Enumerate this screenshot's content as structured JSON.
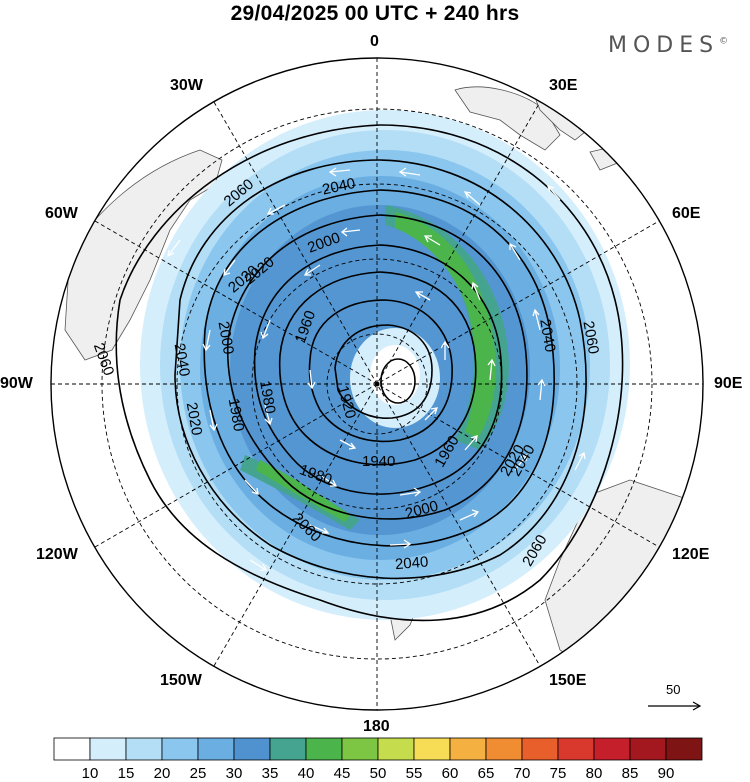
{
  "header": {
    "title": "29/04/2025  00 UTC  + 240 hrs",
    "brand": "MODES"
  },
  "map": {
    "projection": "south polar stereographic",
    "longitude_labels": {
      "top": "0",
      "top_right": "30E",
      "right_upper": "60E",
      "right": "90E",
      "right_lower": "120E",
      "bottom_right": "150E",
      "bottom": "180",
      "bottom_left": "150W",
      "left_lower": "120W",
      "left": "90W",
      "left_upper": "60W",
      "top_left": "30W"
    },
    "contour_labels": [
      "2060",
      "2040",
      "2020",
      "2000",
      "1980",
      "1960",
      "1940",
      "1920",
      "1960",
      "1980",
      "2000",
      "2020",
      "2040",
      "2060",
      "2060",
      "2040",
      "2020",
      "2000",
      "1980",
      "2020",
      "2040",
      "2060",
      "2060",
      "2040"
    ],
    "vector_reference": "50",
    "colors": {
      "land": "#efefef",
      "coast": "#555555",
      "contour": "#000000",
      "vector": "#ffffff"
    }
  },
  "colorbar": {
    "labels": [
      "10",
      "15",
      "20",
      "25",
      "30",
      "35",
      "40",
      "45",
      "50",
      "55",
      "60",
      "65",
      "70",
      "75",
      "80",
      "85",
      "90"
    ],
    "colors": [
      "#ffffff",
      "#d4eefc",
      "#b3def6",
      "#8ac6ee",
      "#6aaee2",
      "#4f92cf",
      "#44a490",
      "#4bb54c",
      "#7cc644",
      "#c5dd4c",
      "#f7dc55",
      "#f5b042",
      "#f08c32",
      "#e85f2c",
      "#d9382c",
      "#c41f2a",
      "#a3171f",
      "#7f1414"
    ]
  }
}
